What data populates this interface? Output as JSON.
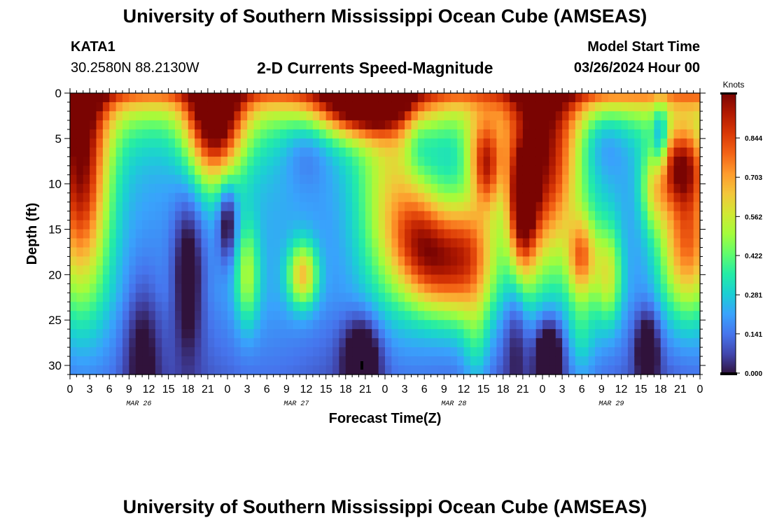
{
  "header": {
    "title": "University of Southern Mississippi Ocean Cube (AMSEAS)",
    "station": "KATA1",
    "coords": "30.2580N  88.2130W",
    "plot_title": "2-D Currents Speed-Magnitude",
    "model_start_label": "Model Start Time",
    "model_start_value": "03/26/2024 Hour 00"
  },
  "footer": {
    "title": "University of Southern Mississippi Ocean Cube (AMSEAS)"
  },
  "colors": {
    "colormap": [
      "#30123b",
      "#4145ab",
      "#4675ed",
      "#39a2fc",
      "#1bcfd4",
      "#24eca6",
      "#61fc6c",
      "#a4fc3b",
      "#d1e834",
      "#f3c63a",
      "#fe9b2d",
      "#f36315",
      "#d93806",
      "#b11901",
      "#7a0402"
    ]
  },
  "chart_data": {
    "type": "heatmap",
    "title": "2-D Currents Speed-Magnitude",
    "xlabel": "Forecast Time(Z)",
    "ylabel": "Depth (ft)",
    "x_tick_labels": [
      "0",
      "3",
      "6",
      "9",
      "12",
      "15",
      "18",
      "21",
      "0",
      "3",
      "6",
      "9",
      "12",
      "15",
      "18",
      "21",
      "0",
      "3",
      "6",
      "9",
      "12",
      "15",
      "18",
      "21",
      "0",
      "3",
      "6",
      "9",
      "12",
      "15",
      "18",
      "21",
      "0"
    ],
    "date_labels": [
      "MAR 26",
      "MAR 27",
      "MAR 28",
      "MAR 29"
    ],
    "xlim_hours": [
      0,
      96
    ],
    "ylim_depth_ft": [
      0,
      31
    ],
    "y_ticks": [
      0,
      5,
      10,
      15,
      20,
      25,
      30
    ],
    "colorbar": {
      "unit": "Knots",
      "tick_labels": [
        "0.000",
        "0.141",
        "0.281",
        "0.422",
        "0.562",
        "0.703",
        "0.844"
      ],
      "range": [
        0,
        1.0
      ]
    },
    "features": [
      {
        "hour": 1.5,
        "depth": 8,
        "value": 0.75,
        "sx": 3.0,
        "sy": 10
      },
      {
        "hour": 11,
        "depth": 28,
        "value": -0.18,
        "sx": 2.0,
        "sy": 6
      },
      {
        "hour": 18,
        "depth": 20,
        "value": -0.25,
        "sx": 1.6,
        "sy": 6
      },
      {
        "hour": 22,
        "depth": 3,
        "value": 0.75,
        "sx": 3.0,
        "sy": 5
      },
      {
        "hour": 24,
        "depth": 14,
        "value": -0.28,
        "sx": 1.0,
        "sy": 3
      },
      {
        "hour": 27,
        "depth": 20,
        "value": 0.3,
        "sx": 1.3,
        "sy": 4
      },
      {
        "hour": 35.5,
        "depth": 20,
        "value": 0.45,
        "sx": 1.6,
        "sy": 2.5
      },
      {
        "hour": 36,
        "depth": 6,
        "value": -0.12,
        "sx": 2.5,
        "sy": 3
      },
      {
        "hour": 45,
        "depth": 1,
        "value": 0.7,
        "sx": 5.0,
        "sy": 2.5
      },
      {
        "hour": 44.5,
        "depth": 29,
        "value": -0.3,
        "sx": 2.0,
        "sy": 3
      },
      {
        "hour": 49,
        "depth": 12,
        "value": 0.35,
        "sx": 4.0,
        "sy": 8
      },
      {
        "hour": 53,
        "depth": 16,
        "value": 0.35,
        "sx": 3.0,
        "sy": 4
      },
      {
        "hour": 56,
        "depth": 19,
        "value": 0.4,
        "sx": 3.0,
        "sy": 4
      },
      {
        "hour": 53,
        "depth": 5,
        "value": -0.12,
        "sx": 1.5,
        "sy": 3
      },
      {
        "hour": 56,
        "depth": 6,
        "value": -0.05,
        "sx": 2.5,
        "sy": 3
      },
      {
        "hour": 61,
        "depth": 18,
        "value": 0.55,
        "sx": 3.0,
        "sy": 5
      },
      {
        "hour": 63,
        "depth": 6,
        "value": 0.3,
        "sx": 2.0,
        "sy": 3
      },
      {
        "hour": 63.5,
        "depth": 9,
        "value": 0.35,
        "sx": 1.5,
        "sy": 3
      },
      {
        "hour": 62,
        "depth": 28,
        "value": 0.15,
        "sx": 1.5,
        "sy": 4
      },
      {
        "hour": 68,
        "depth": 26,
        "value": -0.15,
        "sx": 1.2,
        "sy": 5
      },
      {
        "hour": 69,
        "depth": 5,
        "value": -0.15,
        "sx": 1.2,
        "sy": 3
      },
      {
        "hour": 72,
        "depth": 8,
        "value": 0.7,
        "sx": 4.0,
        "sy": 8
      },
      {
        "hour": 69,
        "depth": 12,
        "value": 0.6,
        "sx": 1.5,
        "sy": 6
      },
      {
        "hour": 73,
        "depth": 29,
        "value": -0.35,
        "sx": 1.5,
        "sy": 3
      },
      {
        "hour": 81,
        "depth": 5,
        "value": -0.15,
        "sx": 2.8,
        "sy": 3
      },
      {
        "hour": 78,
        "depth": 26,
        "value": 0.15,
        "sx": 1.5,
        "sy": 4
      },
      {
        "hour": 78,
        "depth": 18,
        "value": 0.45,
        "sx": 1.5,
        "sy": 3
      },
      {
        "hour": 82,
        "depth": 20,
        "value": 0.35,
        "sx": 1.5,
        "sy": 4
      },
      {
        "hour": 88,
        "depth": 28,
        "value": -0.25,
        "sx": 1.3,
        "sy": 3
      },
      {
        "hour": 90,
        "depth": 5,
        "value": -0.28,
        "sx": 0.8,
        "sy": 3
      },
      {
        "hour": 89,
        "depth": 11,
        "value": 0.25,
        "sx": 1.5,
        "sy": 3
      },
      {
        "hour": 94,
        "depth": 16,
        "value": 0.6,
        "sx": 3.0,
        "sy": 6
      },
      {
        "hour": 93,
        "depth": 8,
        "value": 0.55,
        "sx": 2.5,
        "sy": 3
      }
    ]
  }
}
